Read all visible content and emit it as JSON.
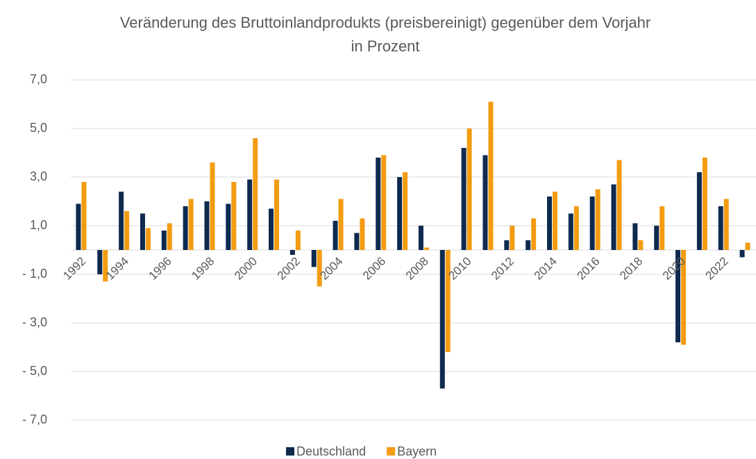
{
  "chart_data": {
    "type": "bar",
    "title": "Veränderung des Bruttoinlandprodukts (preisbereinigt) gegenüber dem Vorjahr in Prozent",
    "categories": [
      "1992",
      null,
      "1994",
      null,
      "1996",
      null,
      "1998",
      null,
      "2000",
      null,
      "2002",
      null,
      "2004",
      null,
      "2006",
      null,
      "2008",
      null,
      "2010",
      null,
      "2012",
      null,
      "2014",
      null,
      "2016",
      null,
      "2018",
      null,
      "2020",
      null,
      "2022",
      null
    ],
    "series": [
      {
        "name": "Deutschland",
        "color": "#0e2a4f",
        "values": [
          1.9,
          -1.0,
          2.4,
          1.5,
          0.8,
          1.8,
          2.0,
          1.9,
          2.9,
          1.7,
          -0.2,
          -0.7,
          1.2,
          0.7,
          3.8,
          3.0,
          1.0,
          -5.7,
          4.2,
          3.9,
          0.4,
          0.4,
          2.2,
          1.5,
          2.2,
          2.7,
          1.1,
          1.0,
          -3.8,
          3.2,
          1.8,
          -0.3
        ]
      },
      {
        "name": "Bayern",
        "color": "#f39c12",
        "values": [
          2.8,
          -1.3,
          1.6,
          0.9,
          1.1,
          2.1,
          3.6,
          2.8,
          4.6,
          2.9,
          0.8,
          -1.5,
          2.1,
          1.3,
          3.9,
          3.2,
          0.1,
          -4.2,
          5.0,
          6.1,
          1.0,
          1.3,
          2.4,
          1.8,
          2.5,
          3.7,
          0.4,
          1.8,
          -3.9,
          3.8,
          2.1,
          0.3
        ]
      }
    ],
    "ylim": [
      -7,
      7
    ],
    "yticks": [
      {
        "value": 7,
        "label": "7,0"
      },
      {
        "value": 5,
        "label": "5,0"
      },
      {
        "value": 3,
        "label": "3,0"
      },
      {
        "value": 1,
        "label": "1,0"
      },
      {
        "value": -1,
        "label": "- 1,0"
      },
      {
        "value": -3,
        "label": "- 3,0"
      },
      {
        "value": -5,
        "label": "- 5,0"
      },
      {
        "value": -7,
        "label": "- 7,0"
      }
    ],
    "grid": true,
    "legend": "bottom"
  }
}
